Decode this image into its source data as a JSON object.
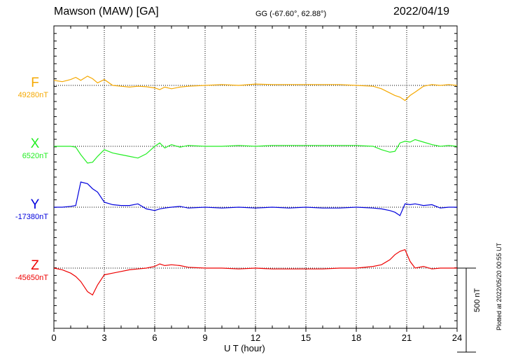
{
  "header": {
    "title": "Mawson (MAW)  [GA]",
    "coords": "GG (-67.60°,  62.88°)",
    "date": "2022/04/19"
  },
  "footer": {
    "plotted": "Plotted at 2022/05/20 00:55 UT",
    "scale_label": "500 nT"
  },
  "chart_data": {
    "type": "line",
    "title": "Mawson (MAW)  [GA]",
    "xlabel": "U T (hour)",
    "ylabel": "",
    "xlim": [
      0,
      24
    ],
    "xticks": [
      0,
      3,
      6,
      9,
      12,
      15,
      18,
      21,
      24
    ],
    "grid": true,
    "scale_bar_nT": 500,
    "series": [
      {
        "name": "F",
        "baseline": "49280nT",
        "color": "#f5a800",
        "x": [
          0,
          0.5,
          1,
          1.3,
          1.6,
          2.0,
          2.3,
          2.6,
          3.0,
          3.5,
          4.0,
          4.5,
          5.0,
          5.5,
          6.0,
          6.3,
          6.6,
          7.0,
          7.5,
          8.0,
          9,
          10,
          11,
          12,
          13,
          14,
          15,
          16,
          17,
          18,
          19,
          19.5,
          20,
          20.3,
          20.6,
          20.9,
          21.2,
          21.5,
          22,
          22.5,
          23,
          23.5,
          24
        ],
        "values": [
          30,
          22,
          35,
          48,
          30,
          55,
          40,
          15,
          35,
          0,
          -5,
          -10,
          -5,
          -8,
          -15,
          -25,
          -10,
          -20,
          -10,
          -5,
          0,
          5,
          0,
          8,
          5,
          5,
          5,
          5,
          5,
          0,
          -5,
          -20,
          -45,
          -60,
          -70,
          -90,
          -60,
          -40,
          -5,
          5,
          0,
          5,
          0
        ]
      },
      {
        "name": "X",
        "baseline": "6520nT",
        "color": "#22ee22",
        "x": [
          0,
          0.5,
          1,
          1.3,
          1.6,
          2.0,
          2.3,
          2.6,
          3.0,
          3.5,
          4.0,
          4.5,
          5.0,
          5.5,
          6.0,
          6.3,
          6.6,
          7.0,
          7.5,
          8.0,
          9,
          10,
          11,
          12,
          13,
          14,
          15,
          16,
          17,
          18,
          19,
          19.5,
          20,
          20.3,
          20.6,
          20.9,
          21.2,
          21.5,
          22,
          22.5,
          23,
          23.5,
          24
        ],
        "values": [
          0,
          0,
          0,
          -5,
          -50,
          -100,
          -95,
          -60,
          -20,
          -40,
          -50,
          -60,
          -70,
          -45,
          0,
          20,
          -10,
          10,
          -5,
          5,
          0,
          0,
          5,
          0,
          5,
          5,
          5,
          5,
          5,
          5,
          0,
          -20,
          -35,
          -30,
          20,
          30,
          25,
          40,
          25,
          10,
          0,
          5,
          0
        ]
      },
      {
        "name": "Y",
        "baseline": "-17380nT",
        "color": "#0000dd",
        "x": [
          0,
          0.5,
          1,
          1.3,
          1.6,
          2.0,
          2.3,
          2.6,
          3.0,
          3.5,
          4.0,
          4.5,
          5.0,
          5.5,
          6.0,
          6.3,
          6.6,
          7.0,
          7.5,
          8.0,
          9,
          10,
          11,
          12,
          13,
          14,
          15,
          16,
          17,
          18,
          19,
          19.5,
          20,
          20.3,
          20.6,
          20.9,
          21.2,
          21.5,
          22,
          22.5,
          23,
          23.5,
          24
        ],
        "values": [
          0,
          0,
          5,
          10,
          150,
          140,
          110,
          90,
          30,
          15,
          10,
          10,
          20,
          -10,
          -20,
          -10,
          -5,
          0,
          5,
          -5,
          0,
          -5,
          0,
          -5,
          0,
          -5,
          0,
          -5,
          -5,
          0,
          -5,
          -10,
          -20,
          -30,
          -50,
          20,
          15,
          20,
          10,
          15,
          -5,
          0,
          0
        ]
      },
      {
        "name": "Z",
        "baseline": "-45650nT",
        "color": "#ee0000",
        "x": [
          0,
          0.5,
          1,
          1.3,
          1.6,
          2.0,
          2.3,
          2.6,
          3.0,
          3.5,
          4.0,
          4.5,
          5.0,
          5.5,
          6.0,
          6.3,
          6.6,
          7.0,
          7.5,
          8.0,
          9,
          10,
          11,
          12,
          13,
          14,
          15,
          16,
          17,
          18,
          19,
          19.5,
          20,
          20.3,
          20.6,
          20.9,
          21.2,
          21.5,
          22,
          22.5,
          23,
          23.5,
          24
        ],
        "values": [
          0,
          -10,
          -30,
          -50,
          -80,
          -140,
          -160,
          -100,
          -40,
          -30,
          -20,
          -10,
          -5,
          0,
          10,
          25,
          15,
          20,
          15,
          5,
          0,
          0,
          -5,
          0,
          -5,
          -5,
          -5,
          -5,
          0,
          0,
          10,
          20,
          50,
          80,
          100,
          110,
          40,
          0,
          10,
          -5,
          0,
          0,
          0
        ]
      }
    ]
  }
}
